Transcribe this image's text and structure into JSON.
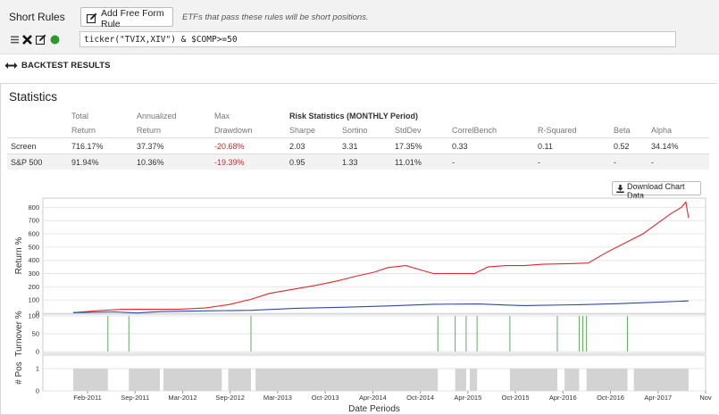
{
  "rules": {
    "section_label": "Short Rules",
    "add_button_label": "Add Free Form Rule",
    "hint": "ETFs that pass these rules will be short positions.",
    "rule_value": "ticker(\"TVIX,XIV\") & $COMP>=50",
    "icons": [
      "menu-icon",
      "delete-icon",
      "edit-icon",
      "status-dot-icon"
    ],
    "status_color": "#2a9a2a"
  },
  "backtest": {
    "header": "BACKTEST RESULTS",
    "icon": "expand-arrows-icon"
  },
  "statistics": {
    "title": "Statistics",
    "headers_top": [
      "",
      "Total",
      "Annualized",
      "Max",
      "Risk Statistics (MONTHLY Period)"
    ],
    "headers": [
      "",
      "Return",
      "Return",
      "Drawdown",
      "Sharpe",
      "Sortino",
      "StdDev",
      "CorrelBench",
      "R-Squared",
      "Beta",
      "Alpha"
    ],
    "rows": [
      {
        "name": "Screen",
        "total_return": "716.17%",
        "annualized_return": "37.37%",
        "max_drawdown": "-20.68%",
        "sharpe": "2.03",
        "sortino": "3.31",
        "stddev": "17.35%",
        "correl_bench": "0.33",
        "r_squared": "0.11",
        "beta": "0.52",
        "alpha": "34.14%"
      },
      {
        "name": "S&P 500",
        "total_return": "91.94%",
        "annualized_return": "10.36%",
        "max_drawdown": "-19.39%",
        "sharpe": "0.95",
        "sortino": "1.33",
        "stddev": "11.01%",
        "correl_bench": "-",
        "r_squared": "-",
        "beta": "-",
        "alpha": "-"
      }
    ],
    "negative_color": "#c0302e"
  },
  "download_button_label": "Download Chart Data",
  "chart_data": [
    {
      "type": "line",
      "ylabel": "Return %",
      "ylim": [
        0,
        870
      ],
      "yticks": [
        0,
        100,
        200,
        300,
        400,
        500,
        600,
        700,
        800
      ],
      "xlabel": "Date Periods",
      "x_ticks": [
        "Feb-2011",
        "Sep-2011",
        "Mar-2012",
        "Sep-2012",
        "Mar-2013",
        "Oct-2013",
        "Apr-2014",
        "Oct-2014",
        "Apr-2015",
        "Oct-2015",
        "Apr-2016",
        "Oct-2016",
        "Apr-2017",
        "Nov"
      ],
      "x_range": [
        2011.05,
        2017.84
      ],
      "grid": true,
      "series": [
        {
          "name": "Screen",
          "color": "#e8252a",
          "x": [
            2011.05,
            2011.3,
            2011.58,
            2011.9,
            2012.2,
            2012.5,
            2012.75,
            2013.0,
            2013.2,
            2013.45,
            2013.7,
            2013.95,
            2014.15,
            2014.35,
            2014.5,
            2014.7,
            2014.85,
            2015.0,
            2015.3,
            2015.45,
            2015.6,
            2015.8,
            2016.0,
            2016.2,
            2016.5,
            2016.7,
            2016.9,
            2017.1,
            2017.3,
            2017.5,
            2017.6,
            2017.72,
            2017.77,
            2017.8
          ],
          "y": [
            5,
            18,
            30,
            30,
            30,
            40,
            65,
            105,
            150,
            180,
            210,
            245,
            280,
            310,
            345,
            360,
            330,
            300,
            300,
            300,
            350,
            360,
            360,
            370,
            375,
            380,
            460,
            530,
            600,
            700,
            750,
            800,
            840,
            720
          ]
        },
        {
          "name": "S&P 500",
          "color": "#2f4aa8",
          "x": [
            2011.05,
            2011.5,
            2011.75,
            2012.0,
            2012.5,
            2013.0,
            2013.5,
            2014.0,
            2014.5,
            2015.0,
            2015.5,
            2015.8,
            2016.0,
            2016.2,
            2016.6,
            2017.0,
            2017.4,
            2017.8
          ],
          "y": [
            5,
            10,
            2,
            12,
            18,
            22,
            38,
            45,
            55,
            68,
            70,
            62,
            58,
            60,
            65,
            72,
            82,
            93
          ]
        }
      ]
    },
    {
      "type": "bar",
      "ylabel": "Turnover %",
      "ylim": [
        0,
        100
      ],
      "yticks": [
        0,
        50,
        100
      ],
      "color": "#5fae5f",
      "x": [
        2011.43,
        2011.66,
        2013.0,
        2015.05,
        2015.24,
        2015.36,
        2015.48,
        2015.84,
        2016.36,
        2016.6,
        2016.64,
        2016.68,
        2017.13
      ],
      "values": [
        100,
        100,
        100,
        100,
        100,
        100,
        100,
        100,
        100,
        100,
        100,
        100,
        100
      ]
    },
    {
      "type": "area",
      "ylabel": "# Pos",
      "ylim": [
        0,
        1.6
      ],
      "yticks": [
        0,
        1
      ],
      "color": "#d3d3d3",
      "x_intervals": [
        [
          2011.05,
          2011.43
        ],
        [
          2011.66,
          2012.0
        ],
        [
          2012.04,
          2012.68
        ],
        [
          2012.75,
          2013.0
        ],
        [
          2013.05,
          2015.05
        ],
        [
          2015.24,
          2015.36
        ],
        [
          2015.4,
          2015.48
        ],
        [
          2015.84,
          2016.36
        ],
        [
          2016.44,
          2016.6
        ],
        [
          2016.68,
          2017.13
        ],
        [
          2017.2,
          2017.8
        ]
      ],
      "value": 1
    }
  ]
}
